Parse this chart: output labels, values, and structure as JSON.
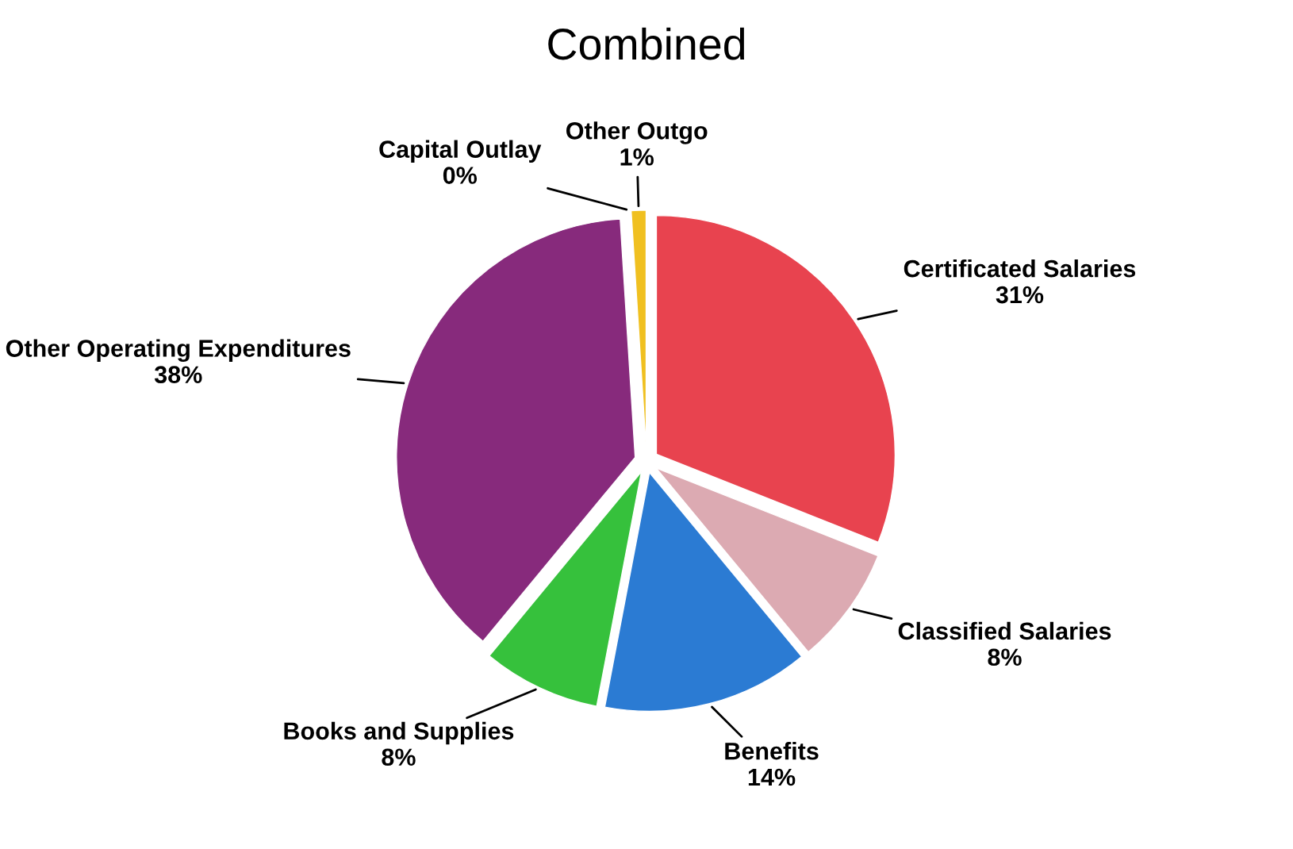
{
  "chart_data": {
    "type": "pie",
    "title": "Combined",
    "categories": [
      "Certificated Salaries",
      "Classified Salaries",
      "Benefits",
      "Books and Supplies",
      "Other Operating Expenditures",
      "Capital Outlay",
      "Other Outgo"
    ],
    "values": [
      31,
      8,
      14,
      8,
      38,
      0,
      1
    ],
    "colors": [
      "#e8434f",
      "#dcaab2",
      "#2b7bd3",
      "#36c13c",
      "#872a7c",
      "#c8a020",
      "#f0c020"
    ],
    "value_labels": [
      "31%",
      "8%",
      "14%",
      "8%",
      "38%",
      "0%",
      "1%"
    ],
    "legend": false
  }
}
